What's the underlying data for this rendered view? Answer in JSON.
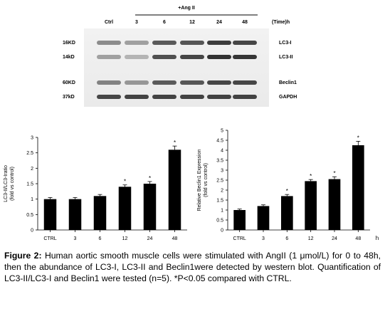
{
  "blot": {
    "treatment_label": "+Ang II",
    "ctrl_label": "Ctrl",
    "time_points": [
      "3",
      "6",
      "12",
      "24",
      "48"
    ],
    "time_unit_label": "(Time)h",
    "bands": [
      {
        "kd": "16KD",
        "name": "LC3-I",
        "intensities": [
          0.45,
          0.35,
          0.7,
          0.72,
          0.85,
          0.8
        ]
      },
      {
        "kd": "14kD",
        "name": "LC3-II",
        "intensities": [
          0.35,
          0.25,
          0.75,
          0.8,
          0.9,
          0.88
        ]
      },
      {
        "kd": "60KD",
        "name": "Beclin1",
        "intensities": [
          0.5,
          0.4,
          0.7,
          0.72,
          0.8,
          0.8
        ]
      },
      {
        "kd": "37kD",
        "name": "GAPDH",
        "intensities": [
          0.8,
          0.82,
          0.82,
          0.82,
          0.82,
          0.82
        ]
      }
    ]
  },
  "chart_data": [
    {
      "type": "bar",
      "ylabel_line1": "LC3-II/LC3-Iratio",
      "ylabel_line2": "(fold vs control)",
      "xunit": "h",
      "categories": [
        "CTRL",
        "3",
        "6",
        "12",
        "24",
        "48"
      ],
      "values": [
        1.0,
        1.0,
        1.1,
        1.4,
        1.5,
        2.6
      ],
      "errors": [
        0.05,
        0.05,
        0.05,
        0.06,
        0.07,
        0.12
      ],
      "significant": [
        false,
        false,
        false,
        true,
        true,
        true
      ],
      "yticks": [
        "0",
        "0.5",
        "1",
        "1.5",
        "2",
        "2.5",
        "3"
      ],
      "ylim": [
        0,
        3
      ]
    },
    {
      "type": "bar",
      "ylabel_line1": "Relative Beclin1 Expression",
      "ylabel_line2": "(fold vs control)",
      "xunit": "h",
      "categories": [
        "CTRL",
        "3",
        "6",
        "12",
        "24",
        "48"
      ],
      "values": [
        1.0,
        1.2,
        1.7,
        2.45,
        2.55,
        4.25
      ],
      "errors": [
        0.05,
        0.06,
        0.08,
        0.08,
        0.12,
        0.2
      ],
      "significant": [
        false,
        false,
        true,
        true,
        true,
        true
      ],
      "yticks": [
        "0",
        "0.5",
        "1",
        "1.5",
        "2",
        "2.5",
        "3",
        "3.5",
        "4",
        "4.5",
        "5"
      ],
      "ylim": [
        0,
        5
      ]
    }
  ],
  "significance_marker": "*",
  "caption": {
    "label": "Figure 2:",
    "text": " Human aortic smooth muscle cells were stimulated with AngII (1 μmol/L) for 0 to 48h, then the abundance of LC3-I, LC3-II and Beclin1were detected by western blot. Quantification of LC3-II/LC3-I and Beclin1 were tested (n=5). *P<0.05 compared with CTRL."
  }
}
